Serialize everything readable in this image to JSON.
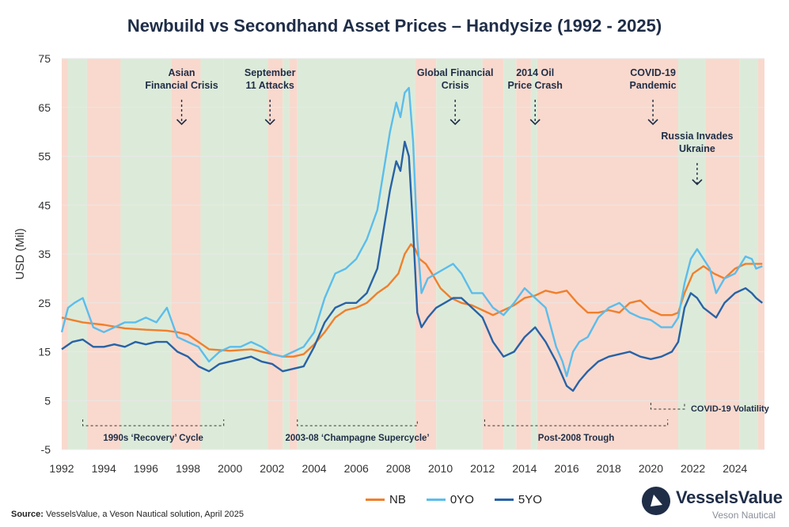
{
  "title": "Newbuild vs Secondhand Asset Prices – Handysize (1992 - 2025)",
  "source_label": "Source:",
  "source_text": "VesselsValue, a Veson Nautical solution, April 2025",
  "brand": {
    "name": "VesselsValue",
    "sub": "Veson Nautical"
  },
  "colors": {
    "nb": "#f07f2c",
    "zero": "#5bbdec",
    "five": "#2862a6",
    "shade_red": "#f9d9cd",
    "shade_green": "#dcebd9",
    "text": "#1f2d47"
  },
  "chart_data": {
    "type": "line",
    "title": "Newbuild vs Secondhand Asset Prices – Handysize (1992 - 2025)",
    "ylabel": "USD (Mil)",
    "xlim": [
      1992,
      2025.4
    ],
    "ylim": [
      -5,
      75
    ],
    "yticks": [
      -5,
      5,
      15,
      25,
      35,
      45,
      55,
      65,
      75
    ],
    "xticks": [
      1992,
      1994,
      1996,
      1998,
      2000,
      2002,
      2004,
      2006,
      2008,
      2010,
      2012,
      2014,
      2016,
      2018,
      2020,
      2022,
      2024
    ],
    "legend_position": "bottom",
    "series": [
      {
        "name": "NB",
        "color": "#f07f2c",
        "x": [
          1992,
          1992.5,
          1993,
          1994,
          1995,
          1996,
          1997,
          1997.5,
          1998,
          1998.5,
          1999,
          2000,
          2001,
          2002,
          2002.5,
          2003,
          2003.5,
          2004,
          2004.5,
          2005,
          2005.5,
          2006,
          2006.5,
          2007,
          2007.5,
          2008,
          2008.3,
          2008.6,
          2008.8,
          2009,
          2009.3,
          2009.6,
          2010,
          2010.5,
          2011,
          2011.5,
          2012,
          2012.5,
          2013,
          2013.5,
          2014,
          2014.5,
          2015,
          2015.5,
          2016,
          2016.5,
          2017,
          2017.5,
          2018,
          2018.5,
          2019,
          2019.5,
          2020,
          2020.5,
          2021,
          2021.3,
          2021.6,
          2022,
          2022.5,
          2023,
          2023.5,
          2024,
          2024.5,
          2025,
          2025.3
        ],
        "y": [
          22,
          21.5,
          21,
          20.5,
          19.8,
          19.5,
          19.3,
          19,
          18.5,
          17,
          15.5,
          15.2,
          15.5,
          14.5,
          14,
          14,
          14.5,
          16.5,
          19,
          22,
          23.5,
          24,
          25,
          27,
          28.5,
          31,
          35,
          37,
          36,
          34,
          33,
          31,
          28,
          26,
          25,
          24.5,
          23.5,
          22.5,
          23.5,
          24.5,
          26,
          26.5,
          27.5,
          27,
          27.5,
          25,
          23,
          23,
          23.5,
          23,
          25,
          25.5,
          23.5,
          22.5,
          22.5,
          23,
          27,
          31,
          32.5,
          31,
          30,
          32,
          33,
          33,
          33
        ]
      },
      {
        "name": "0YO",
        "color": "#5bbdec",
        "x": [
          1992,
          1992.3,
          1992.6,
          1993,
          1993.5,
          1994,
          1994.5,
          1995,
          1995.5,
          1996,
          1996.5,
          1997,
          1997.5,
          1998,
          1998.5,
          1999,
          1999.5,
          2000,
          2000.5,
          2001,
          2001.5,
          2002,
          2002.5,
          2003,
          2003.5,
          2004,
          2004.5,
          2005,
          2005.5,
          2006,
          2006.5,
          2007,
          2007.3,
          2007.6,
          2007.9,
          2008.1,
          2008.3,
          2008.5,
          2008.7,
          2008.9,
          2009.1,
          2009.4,
          2009.8,
          2010.2,
          2010.6,
          2011,
          2011.5,
          2012,
          2012.5,
          2013,
          2013.5,
          2014,
          2014.5,
          2015,
          2015.5,
          2015.8,
          2016,
          2016.3,
          2016.6,
          2017,
          2017.5,
          2018,
          2018.5,
          2019,
          2019.5,
          2020,
          2020.5,
          2021,
          2021.3,
          2021.6,
          2021.9,
          2022.2,
          2022.5,
          2022.8,
          2023.1,
          2023.5,
          2024,
          2024.5,
          2024.8,
          2025,
          2025.3
        ],
        "y": [
          19,
          24,
          25,
          26,
          20,
          19,
          20,
          21,
          21,
          22,
          21,
          24,
          18,
          17,
          16,
          13,
          15,
          16,
          16,
          17,
          16,
          14.5,
          14,
          15,
          16,
          19,
          26,
          31,
          32,
          34,
          38,
          44,
          52,
          60,
          66,
          63,
          68,
          69,
          58,
          38,
          27,
          30,
          31,
          32,
          33,
          31,
          27,
          27,
          24,
          22.5,
          25,
          28,
          26,
          24,
          16,
          13,
          10,
          15,
          17,
          18,
          22,
          24,
          25,
          23,
          22,
          21.5,
          20,
          20,
          22,
          29,
          34,
          36,
          34,
          32,
          27,
          30,
          31,
          34.5,
          34,
          32,
          32.5
        ]
      },
      {
        "name": "5YO",
        "color": "#2862a6",
        "x": [
          1992,
          1992.5,
          1993,
          1993.5,
          1994,
          1994.5,
          1995,
          1995.5,
          1996,
          1996.5,
          1997,
          1997.5,
          1998,
          1998.5,
          1999,
          1999.5,
          2000,
          2000.5,
          2001,
          2001.5,
          2002,
          2002.5,
          2003,
          2003.5,
          2004,
          2004.5,
          2005,
          2005.5,
          2006,
          2006.5,
          2007,
          2007.3,
          2007.6,
          2007.9,
          2008.1,
          2008.3,
          2008.5,
          2008.7,
          2008.9,
          2009.1,
          2009.4,
          2009.8,
          2010.2,
          2010.6,
          2011,
          2011.5,
          2012,
          2012.5,
          2013,
          2013.5,
          2014,
          2014.5,
          2015,
          2015.5,
          2016,
          2016.3,
          2016.6,
          2017,
          2017.5,
          2018,
          2018.5,
          2019,
          2019.5,
          2020,
          2020.5,
          2021,
          2021.3,
          2021.6,
          2021.9,
          2022.2,
          2022.5,
          2022.8,
          2023.1,
          2023.5,
          2024,
          2024.5,
          2024.8,
          2025,
          2025.3
        ],
        "y": [
          15.5,
          17,
          17.5,
          16,
          16,
          16.5,
          16,
          17,
          16.5,
          17,
          17,
          15,
          14,
          12,
          11,
          12.5,
          13,
          13.5,
          14,
          13,
          12.5,
          11,
          11.5,
          12,
          16,
          21,
          24,
          25,
          25,
          27,
          32,
          40,
          48,
          54,
          52,
          58,
          55,
          40,
          23,
          20,
          22,
          24,
          25,
          26,
          26,
          24,
          22,
          17,
          14,
          15,
          18,
          20,
          17,
          13,
          8,
          7,
          9,
          11,
          13,
          14,
          14.5,
          15,
          14,
          13.5,
          14,
          15,
          17,
          24,
          27,
          26,
          24,
          23,
          22,
          25,
          27,
          28,
          27,
          26,
          25
        ]
      }
    ],
    "annotations": [
      {
        "text": "Asian\nFinancial Crisis",
        "x": 1997.7
      },
      {
        "text": "September\n11 Attacks",
        "x": 2001.9
      },
      {
        "text": "Global Financial\nCrisis",
        "x": 2010.7
      },
      {
        "text": "2014 Oil\nPrice Crash",
        "x": 2014.5
      },
      {
        "text": "COVID-19\nPandemic",
        "x": 2020.1
      },
      {
        "text": "Russia Invades\nUkraine",
        "x": 2022.2
      }
    ],
    "periods": [
      {
        "label": "1990s ‘Recovery’ Cycle",
        "x0": 1993.0,
        "x1": 1999.7
      },
      {
        "label": "2003-08 ‘Champagne Supercycle’",
        "x0": 2003.2,
        "x1": 2008.9
      },
      {
        "label": "Post-2008 Trough",
        "x0": 2012.1,
        "x1": 2020.8
      },
      {
        "label": "COVID-19 Volatility",
        "x0": 2020.0,
        "x1": 2021.6
      }
    ],
    "shading": [
      {
        "x0": 1992.0,
        "x1": 1992.3,
        "state": "down"
      },
      {
        "x0": 1992.3,
        "x1": 1993.2,
        "state": "up"
      },
      {
        "x0": 1993.2,
        "x1": 1994.8,
        "state": "down"
      },
      {
        "x0": 1994.8,
        "x1": 1997.2,
        "state": "up"
      },
      {
        "x0": 1997.2,
        "x1": 1998.6,
        "state": "down"
      },
      {
        "x0": 1998.6,
        "x1": 1999.7,
        "state": "up"
      },
      {
        "x0": 1999.7,
        "x1": 2001.8,
        "state": "up"
      },
      {
        "x0": 2001.8,
        "x1": 2002.5,
        "state": "down"
      },
      {
        "x0": 2002.5,
        "x1": 2002.8,
        "state": "up"
      },
      {
        "x0": 2002.8,
        "x1": 2003.2,
        "state": "down"
      },
      {
        "x0": 2003.2,
        "x1": 2008.8,
        "state": "up"
      },
      {
        "x0": 2008.8,
        "x1": 2009.8,
        "state": "down"
      },
      {
        "x0": 2009.8,
        "x1": 2012.0,
        "state": "up"
      },
      {
        "x0": 2012.0,
        "x1": 2013.0,
        "state": "down"
      },
      {
        "x0": 2013.0,
        "x1": 2013.6,
        "state": "up"
      },
      {
        "x0": 2013.6,
        "x1": 2014.3,
        "state": "down"
      },
      {
        "x0": 2014.3,
        "x1": 2014.6,
        "state": "up"
      },
      {
        "x0": 2014.6,
        "x1": 2021.3,
        "state": "down"
      },
      {
        "x0": 2021.3,
        "x1": 2022.6,
        "state": "up"
      },
      {
        "x0": 2022.6,
        "x1": 2024.2,
        "state": "down"
      },
      {
        "x0": 2024.2,
        "x1": 2025.1,
        "state": "up"
      },
      {
        "x0": 2025.1,
        "x1": 2025.4,
        "state": "down"
      }
    ]
  }
}
